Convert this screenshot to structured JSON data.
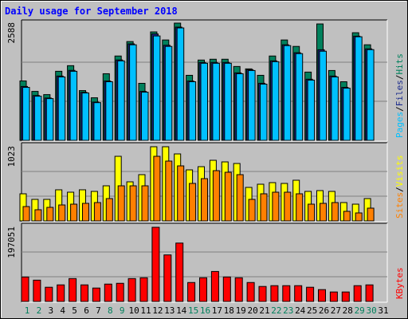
{
  "chart_data": {
    "type": "bar",
    "title": "Daily usage for September 2018",
    "categories": [
      "1",
      "2",
      "3",
      "4",
      "5",
      "6",
      "7",
      "8",
      "9",
      "10",
      "11",
      "12",
      "13",
      "14",
      "15",
      "16",
      "17",
      "18",
      "19",
      "20",
      "21",
      "22",
      "23",
      "24",
      "25",
      "26",
      "27",
      "28",
      "29",
      "30",
      "31"
    ],
    "category_colors": [
      "#00805c",
      "#00805c",
      "#000000",
      "#000000",
      "#000000",
      "#000000",
      "#000000",
      "#00805c",
      "#00805c",
      "#000000",
      "#000000",
      "#000000",
      "#000000",
      "#000000",
      "#00805c",
      "#00805c",
      "#000000",
      "#000000",
      "#000000",
      "#000000",
      "#000000",
      "#00805c",
      "#00805c",
      "#000000",
      "#000000",
      "#000000",
      "#000000",
      "#000000",
      "#00805c",
      "#00805c",
      "#000000"
    ],
    "separator": "/",
    "panels": [
      {
        "ylim": [
          0,
          2588
        ],
        "yticks": [
          2588
        ],
        "gridlines": [
          862.7,
          1725.3
        ],
        "series": [
          {
            "name": "Hits",
            "color": "#00805c",
            "values": [
              1312,
              1081,
              1010,
              1525,
              1649,
              1099,
              940,
              1471,
              1862,
              2181,
              1259,
              2394,
              2216,
              2588,
              1436,
              1773,
              1791,
              1791,
              1631,
              1578,
              1436,
              1862,
              2216,
              2074,
              1507,
              2570,
              1542,
              1294,
              2376,
              2110,
              null
            ]
          },
          {
            "name": "Files",
            "color": "#1a2a8c",
            "values": [
              1190,
              990,
              935,
              1420,
              1545,
              1060,
              845,
              1310,
              1775,
              2130,
              1080,
              2350,
              2100,
              2500,
              1310,
              1720,
              1720,
              1720,
              1490,
              1560,
              1260,
              1755,
              2110,
              1935,
              1350,
              2000,
              1420,
              1170,
              2300,
              2020,
              null
            ]
          },
          {
            "name": "Pages",
            "color": "#00c0ff",
            "values": [
              1170,
              975,
              922,
              1400,
              1525,
              1046,
              833,
              1294,
              1755,
              2110,
              1064,
              2305,
              2074,
              2482,
              1294,
              1702,
              1702,
              1702,
              1471,
              1542,
              1241,
              1737,
              2092,
              1915,
              1330,
              1968,
              1400,
              1152,
              2287,
              2003,
              null
            ]
          }
        ]
      },
      {
        "ylim": [
          0,
          1023
        ],
        "yticks": [
          1023
        ],
        "gridlines": [
          341,
          682
        ],
        "series": [
          {
            "name": "Visits",
            "color": "#ffff00",
            "values": [
              374,
              297,
              297,
              429,
              396,
              429,
              407,
              484,
              891,
              539,
              638,
              1023,
              1023,
              924,
              704,
              748,
              836,
              814,
              792,
              462,
              506,
              528,
              517,
              561,
              407,
              418,
              407,
              253,
              231,
              308,
              null
            ]
          },
          {
            "name": "Sites",
            "color": "#ff8000",
            "values": [
              198,
              154,
              187,
              220,
              231,
              242,
              253,
              308,
              484,
              484,
              484,
              891,
              825,
              759,
              517,
              583,
              693,
              671,
              638,
              297,
              374,
              396,
              396,
              374,
              231,
              242,
              253,
              132,
              110,
              176,
              null
            ]
          }
        ]
      },
      {
        "ylim": [
          0,
          197051
        ],
        "yticks": [
          197051
        ],
        "gridlines": [
          65684,
          131367
        ],
        "series": [
          {
            "name": "KBytes",
            "color": "#ff0000",
            "values": [
              64980,
              56600,
              37730,
              44020,
              60790,
              44020,
              35640,
              46120,
              48210,
              60790,
              62890,
              197051,
              123680,
              155120,
              50310,
              62890,
              79660,
              64980,
              62890,
              50310,
              39830,
              41930,
              41930,
              41930,
              37730,
              31440,
              25160,
              25160,
              41930,
              44020,
              null
            ]
          }
        ]
      }
    ]
  }
}
